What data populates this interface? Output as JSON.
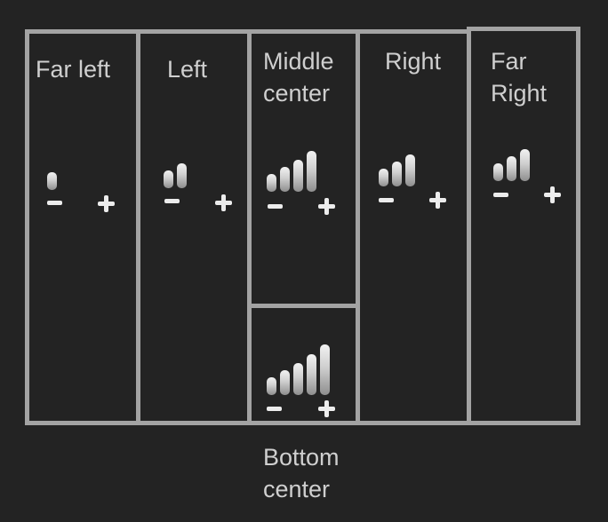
{
  "zones": [
    {
      "id": "far-left",
      "label": "Far left",
      "level": 1
    },
    {
      "id": "left",
      "label": "Left",
      "level": 2
    },
    {
      "id": "middle-center",
      "label": "Middle\ncenter",
      "level": 4
    },
    {
      "id": "right",
      "label": "Right",
      "level": 3
    },
    {
      "id": "far-right",
      "label": "Far\nRight",
      "level": 3
    },
    {
      "id": "bottom-center",
      "label": "Bottom\ncenter",
      "level": 5
    }
  ],
  "colors": {
    "background": "#232323",
    "border": "#a3a3a3",
    "text": "#cfcfcf",
    "icon": "#ececec"
  },
  "icons": {
    "decrease": "minus-icon",
    "increase": "plus-icon",
    "level": "signal-bars-icon"
  }
}
